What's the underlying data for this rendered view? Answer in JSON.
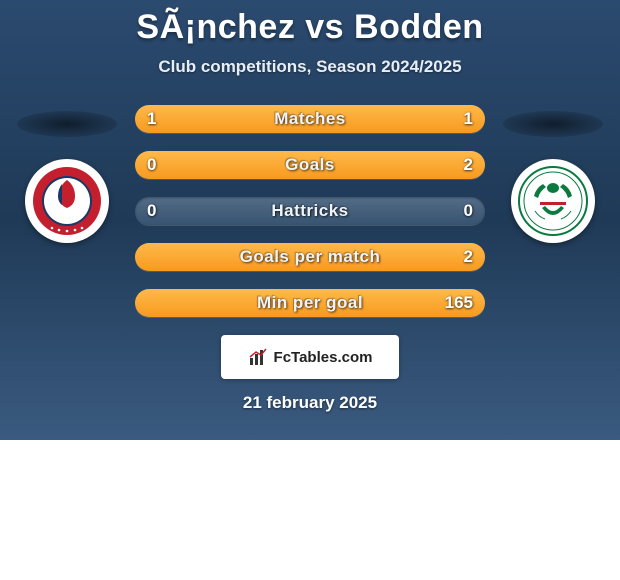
{
  "title": "SÃ¡nchez vs Bodden",
  "subtitle": "Club competitions, Season 2024/2025",
  "date": "21 february 2025",
  "brand": "FcTables.com",
  "colors": {
    "bg_gradient_top": "#2b4a6f",
    "bg_gradient_mid": "#1f3a57",
    "bg_gradient_bot": "#3a5a7f",
    "bar_fill_top": "#ffb94a",
    "bar_fill_bot": "#f79a1f",
    "bar_track": "rgba(140,170,200,0.35)",
    "text": "#ffffff"
  },
  "typography": {
    "title_fontsize": 34,
    "title_weight": 900,
    "subtitle_fontsize": 17,
    "label_fontsize": 17,
    "value_fontsize": 17,
    "date_fontsize": 17
  },
  "bars": [
    {
      "label": "Matches",
      "left": "1",
      "right": "1",
      "left_pct": 50,
      "right_pct": 50
    },
    {
      "label": "Goals",
      "left": "0",
      "right": "2",
      "left_pct": 0,
      "right_pct": 100
    },
    {
      "label": "Hattricks",
      "left": "0",
      "right": "0",
      "left_pct": 0,
      "right_pct": 0
    },
    {
      "label": "Goals per match",
      "left": "",
      "right": "2",
      "left_pct": 0,
      "right_pct": 100
    },
    {
      "label": "Min per goal",
      "left": "",
      "right": "165",
      "left_pct": 0,
      "right_pct": 100
    }
  ],
  "crest_left": {
    "name": "Olimpia",
    "primary": "#c31f2e",
    "secondary": "#1a3766",
    "accent": "#ffffff"
  },
  "crest_right": {
    "name": "Marathon",
    "primary": "#0a7a3f",
    "secondary": "#c31f2e",
    "accent": "#ffffff"
  }
}
